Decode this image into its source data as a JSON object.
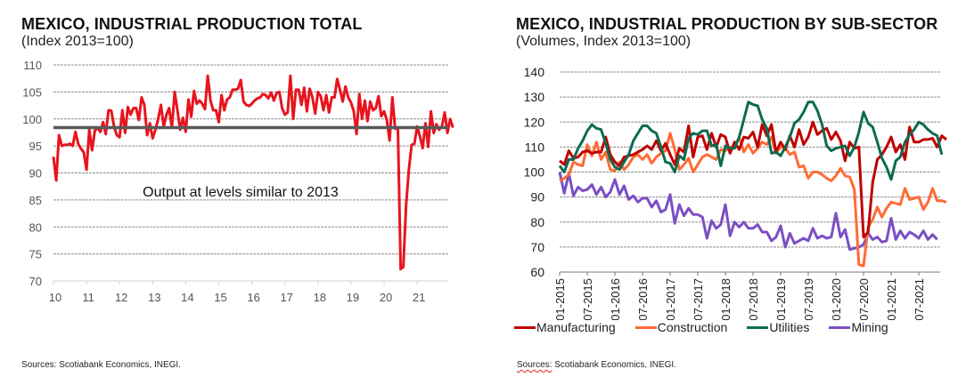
{
  "left": {
    "title": "MEXICO, INDUSTRIAL PRODUCTION TOTAL",
    "subtitle": "(Index 2013=100)",
    "annotation": "Output at levels similar to 2013",
    "source": "Sources: Scotiabank Economics, INEGI."
  },
  "right": {
    "title": "MEXICO, INDUSTRIAL PRODUCTION BY SUB-SECTOR",
    "subtitle": "(Volumes, Index 2013=100)",
    "source_prefix": "Sources:",
    "source_rest": " Scotiabank Economics, INEGI."
  },
  "chart_data": [
    {
      "type": "line",
      "title": "MEXICO, INDUSTRIAL PRODUCTION TOTAL",
      "subtitle": "(Index 2013=100)",
      "xlabel": "",
      "ylabel": "",
      "ylim": [
        70,
        110
      ],
      "yticks": [
        70,
        75,
        80,
        85,
        90,
        95,
        100,
        105,
        110
      ],
      "xtick_labels": [
        "10",
        "11",
        "12",
        "13",
        "14",
        "15",
        "16",
        "17",
        "18",
        "19",
        "20",
        "21"
      ],
      "x_start": "2010-01",
      "frequency": "monthly",
      "grid": true,
      "reference_line": {
        "value": 98.4,
        "color": "#595959"
      },
      "annotation": "Output at levels similar to 2013",
      "series": [
        {
          "name": "Industrial Production Total",
          "color": "#e8141e",
          "values": [
            93.0,
            88.6,
            97.0,
            95.0,
            95.2,
            95.2,
            95.4,
            95.0,
            97.6,
            95.4,
            94.5,
            93.8,
            90.6,
            98.0,
            94.2,
            97.8,
            98.4,
            97.6,
            99.4,
            97.2,
            101.6,
            101.5,
            98.6,
            97.0,
            96.6,
            101.6,
            97.4,
            102.2,
            100.8,
            102.0,
            102.0,
            99.8,
            104.0,
            102.6,
            97.0,
            99.2,
            96.4,
            98.0,
            100.0,
            102.6,
            98.6,
            100.8,
            102.0,
            98.4,
            105.0,
            101.6,
            98.0,
            100.2,
            97.6,
            103.6,
            100.4,
            105.2,
            102.8,
            103.4,
            102.8,
            101.8,
            108.0,
            103.4,
            101.6,
            101.6,
            99.4,
            104.4,
            101.6,
            103.6,
            104.0,
            105.4,
            105.4,
            105.6,
            107.2,
            103.2,
            102.6,
            102.4,
            102.8,
            103.4,
            103.8,
            104.0,
            104.6,
            104.4,
            103.8,
            104.9,
            103.4,
            104.8,
            105.0,
            102.0,
            100.8,
            101.2,
            108.0,
            100.0,
            105.4,
            105.4,
            102.6,
            105.8,
            101.4,
            105.6,
            104.0,
            101.0,
            105.0,
            104.2,
            101.6,
            104.4,
            101.2,
            104.0,
            104.0,
            107.4,
            105.4,
            103.2,
            106.0,
            104.0,
            103.0,
            101.4,
            97.2,
            104.6,
            100.0,
            103.4,
            99.6,
            103.2,
            101.6,
            102.0,
            104.2,
            100.5,
            101.4,
            99.8,
            96.0,
            104.0,
            98.2,
            98.4,
            72.2,
            72.6,
            84.0,
            90.6,
            95.2,
            95.4,
            98.6,
            96.8,
            94.6,
            99.2,
            94.8,
            101.4,
            97.4,
            99.0,
            98.0,
            98.6,
            101.2,
            97.4,
            100.0,
            98.4
          ]
        }
      ],
      "source": "Sources: Scotiabank Economics, INEGI."
    },
    {
      "type": "line",
      "title": "MEXICO, INDUSTRIAL PRODUCTION BY SUB-SECTOR",
      "subtitle": "(Volumes, Index 2013=100)",
      "xlabel": "",
      "ylabel": "",
      "ylim": [
        60,
        140
      ],
      "yticks": [
        60,
        70,
        80,
        90,
        100,
        110,
        120,
        130,
        140
      ],
      "xtick_labels": [
        "01-2015",
        "07-2015",
        "01-2016",
        "07-2016",
        "01-2017",
        "07-2017",
        "01-2018",
        "07-2018",
        "01-2019",
        "07-2019",
        "01-2020",
        "07-2020",
        "01-2021",
        "07-2021"
      ],
      "x_start": "2015-01",
      "frequency": "monthly",
      "grid": true,
      "legend": "bottom",
      "series": [
        {
          "name": "Manufacturing",
          "color": "#c00000",
          "values": [
            104.5,
            103.0,
            108.5,
            105.5,
            106.0,
            108.0,
            108.5,
            107.5,
            108.0,
            108.0,
            114.0,
            107.0,
            104.0,
            102.5,
            106.0,
            106.5,
            107.0,
            108.0,
            109.0,
            110.5,
            109.0,
            112.5,
            108.5,
            111.5,
            107.0,
            103.0,
            109.5,
            108.0,
            118.5,
            106.0,
            114.0,
            114.5,
            109.0,
            115.5,
            110.0,
            115.0,
            114.0,
            107.5,
            112.0,
            109.0,
            114.0,
            113.5,
            116.0,
            110.0,
            119.0,
            114.5,
            119.0,
            108.0,
            112.0,
            109.0,
            114.5,
            110.0,
            117.0,
            111.0,
            114.0,
            120.0,
            115.0,
            116.5,
            117.5,
            113.0,
            116.0,
            112.5,
            104.5,
            112.0,
            109.5,
            110.0,
            74.0,
            76.0,
            96.0,
            105.0,
            107.0,
            110.0,
            114.0,
            108.0,
            111.0,
            105.0,
            118.0,
            112.0,
            112.0,
            113.0,
            113.0,
            113.5,
            110.0,
            114.5,
            113.0
          ]
        },
        {
          "name": "Construction",
          "color": "#ff6b35",
          "values": [
            96.5,
            97.5,
            99.0,
            104.0,
            103.0,
            102.5,
            111.0,
            106.5,
            112.0,
            105.0,
            108.0,
            101.0,
            100.5,
            104.0,
            101.0,
            103.0,
            106.0,
            107.0,
            105.0,
            107.0,
            103.5,
            106.0,
            107.5,
            108.5,
            115.5,
            109.0,
            101.0,
            103.0,
            105.5,
            100.0,
            103.0,
            106.0,
            107.0,
            106.0,
            105.0,
            109.0,
            108.5,
            110.0,
            109.5,
            114.0,
            108.0,
            111.0,
            107.5,
            109.5,
            112.0,
            111.0,
            114.0,
            107.5,
            110.0,
            109.5,
            107.0,
            108.0,
            102.0,
            102.5,
            97.5,
            100.0,
            100.0,
            99.0,
            97.5,
            96.5,
            98.5,
            101.5,
            98.5,
            98.0,
            93.0,
            63.0,
            62.5,
            78.0,
            81.0,
            86.0,
            82.0,
            85.5,
            88.0,
            87.5,
            87.0,
            93.5,
            89.0,
            89.5,
            90.0,
            85.0,
            88.0,
            93.5,
            88.5,
            88.5,
            88.0
          ]
        },
        {
          "name": "Utilities",
          "color": "#0d6b50",
          "values": [
            102.5,
            100.0,
            105.0,
            105.0,
            109.5,
            112.5,
            116.5,
            119.0,
            117.5,
            117.0,
            111.5,
            105.0,
            102.0,
            101.0,
            104.0,
            107.0,
            112.5,
            115.5,
            118.5,
            118.5,
            116.5,
            115.5,
            110.0,
            104.0,
            103.5,
            100.0,
            106.5,
            105.0,
            113.5,
            115.5,
            115.0,
            116.5,
            116.5,
            110.5,
            111.0,
            102.5,
            110.5,
            109.5,
            109.5,
            114.0,
            121.0,
            128.0,
            127.0,
            126.5,
            121.0,
            117.5,
            107.5,
            108.0,
            106.5,
            110.0,
            114.0,
            119.5,
            121.0,
            124.0,
            128.0,
            128.0,
            124.5,
            119.0,
            110.5,
            108.5,
            109.5,
            110.0,
            110.5,
            106.5,
            110.0,
            116.0,
            124.0,
            119.5,
            118.0,
            112.0,
            105.5,
            102.0,
            97.0,
            104.5,
            106.0,
            112.0,
            115.0,
            117.0,
            120.0,
            119.0,
            117.0,
            115.5,
            114.5,
            107.0
          ]
        },
        {
          "name": "Mining",
          "color": "#7b4fc4",
          "values": [
            100.0,
            91.5,
            99.5,
            90.5,
            94.0,
            92.5,
            93.0,
            95.0,
            91.0,
            94.0,
            90.0,
            92.0,
            97.0,
            91.0,
            94.5,
            89.0,
            90.5,
            88.0,
            89.5,
            89.5,
            86.0,
            88.5,
            84.0,
            85.0,
            91.0,
            79.5,
            87.0,
            82.5,
            85.5,
            83.0,
            83.0,
            82.0,
            73.5,
            80.5,
            77.5,
            79.0,
            87.0,
            74.5,
            80.0,
            78.0,
            80.0,
            77.5,
            77.5,
            79.0,
            76.0,
            76.0,
            72.5,
            74.0,
            78.5,
            70.0,
            75.5,
            71.5,
            72.5,
            73.5,
            72.5,
            77.5,
            73.5,
            74.5,
            73.5,
            74.0,
            83.5,
            74.0,
            77.0,
            69.0,
            69.5,
            70.0,
            71.0,
            75.5,
            73.0,
            74.0,
            72.0,
            72.5,
            81.5,
            73.0,
            76.5,
            73.5,
            76.0,
            75.0,
            73.5,
            76.5,
            73.0,
            75.0,
            73.0
          ]
        }
      ],
      "source": "Sources: Scotiabank Economics, INEGI."
    }
  ]
}
